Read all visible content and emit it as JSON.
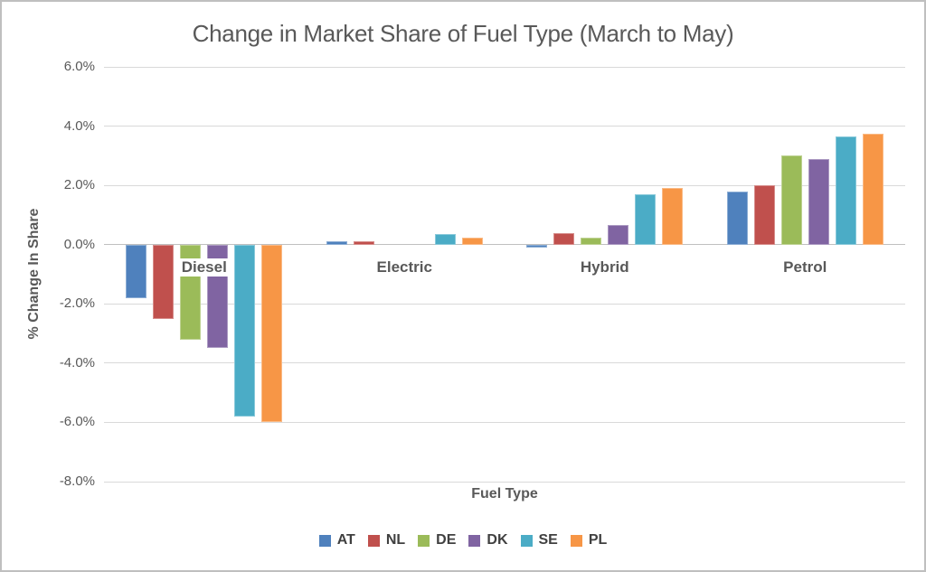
{
  "window": {
    "background": "#ffffff",
    "border_color": "#bfbfbf"
  },
  "chart_data": {
    "type": "bar",
    "title": "Change in Market Share of Fuel Type (March to May)",
    "xlabel": "Fuel Type",
    "ylabel": "% Change In Share",
    "categories": [
      "Diesel",
      "Electric",
      "Hybrid",
      "Petrol"
    ],
    "series": [
      {
        "name": "AT",
        "color": "#4F81BD",
        "values": [
          -1.8,
          0.1,
          -0.1,
          1.8
        ]
      },
      {
        "name": "NL",
        "color": "#C0504D",
        "values": [
          -2.5,
          0.1,
          0.4,
          2.0
        ]
      },
      {
        "name": "DE",
        "color": "#9BBB59",
        "values": [
          -3.2,
          0.0,
          0.25,
          3.0
        ]
      },
      {
        "name": "DK",
        "color": "#8064A2",
        "values": [
          -3.5,
          0.0,
          0.65,
          2.9
        ]
      },
      {
        "name": "SE",
        "color": "#4BACC6",
        "values": [
          -5.8,
          0.35,
          1.7,
          3.65
        ]
      },
      {
        "name": "PL",
        "color": "#F79646",
        "values": [
          -6.0,
          0.25,
          1.9,
          3.75
        ]
      }
    ],
    "ylim": [
      -8,
      6
    ],
    "ytick_step": 2,
    "yticks": [
      {
        "value": 6,
        "label": "6.0%"
      },
      {
        "value": 4,
        "label": "4.0%"
      },
      {
        "value": 2,
        "label": "2.0%"
      },
      {
        "value": 0,
        "label": "0.0%"
      },
      {
        "value": -2,
        "label": "-2.0%"
      },
      {
        "value": -4,
        "label": "-4.0%"
      },
      {
        "value": -6,
        "label": "-6.0%"
      },
      {
        "value": -8,
        "label": "-8.0%"
      }
    ],
    "grid": true,
    "gridline_color": "#D9D9D9",
    "zeroline_color": "#BFBFBF",
    "text_color": "#595959",
    "legend_position": "bottom"
  }
}
